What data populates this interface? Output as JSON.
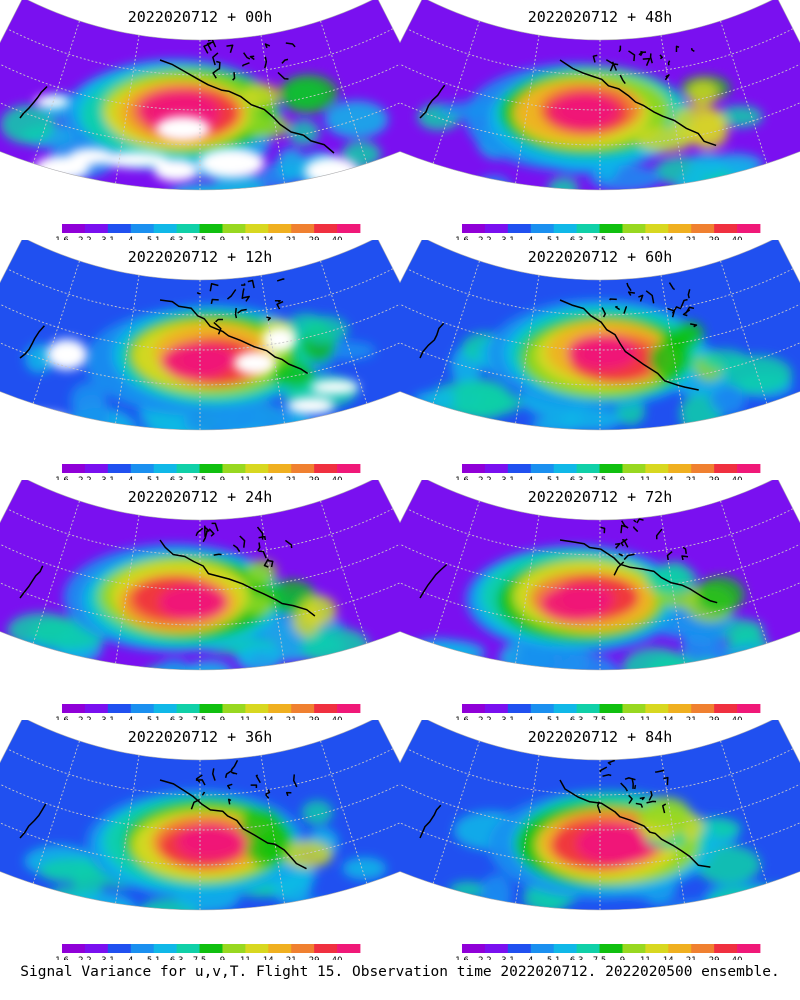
{
  "colorbar": {
    "ticks": [
      "1.6",
      "2.2",
      "3.1",
      "4",
      "5.1",
      "6.3",
      "7.5",
      "9",
      "11",
      "14",
      "21",
      "29",
      "40"
    ],
    "colors": [
      "#9000d8",
      "#7a10f0",
      "#2050f0",
      "#1a90f0",
      "#10b8e8",
      "#10d0a8",
      "#10c010",
      "#98d820",
      "#d8d820",
      "#f0b020",
      "#f08030",
      "#f03040",
      "#f01878"
    ]
  },
  "colors": {
    "coastline": "#000000",
    "missing": "#ffffff",
    "graticule": "#c8c8c8"
  },
  "chart_data": [
    {
      "type": "heatmap",
      "title": "2022020712 + 00h",
      "lead_hours": 0,
      "max_level": "40"
    },
    {
      "type": "heatmap",
      "title": "2022020712 + 12h",
      "lead_hours": 12,
      "max_level": "29"
    },
    {
      "type": "heatmap",
      "title": "2022020712 + 24h",
      "lead_hours": 24,
      "max_level": "21"
    },
    {
      "type": "heatmap",
      "title": "2022020712 + 36h",
      "lead_hours": 36,
      "max_level": "29"
    },
    {
      "type": "heatmap",
      "title": "2022020712 + 48h",
      "lead_hours": 48,
      "max_level": "21"
    },
    {
      "type": "heatmap",
      "title": "2022020712 + 60h",
      "lead_hours": 60,
      "max_level": "21"
    },
    {
      "type": "heatmap",
      "title": "2022020712 + 72h",
      "lead_hours": 72,
      "max_level": "21"
    },
    {
      "type": "heatmap",
      "title": "2022020712 + 84h",
      "lead_hours": 84,
      "max_level": "40"
    }
  ],
  "footer": "Signal Variance for u,v,T. Flight 15. Observation time 2022020712. 2022020500 ensemble."
}
